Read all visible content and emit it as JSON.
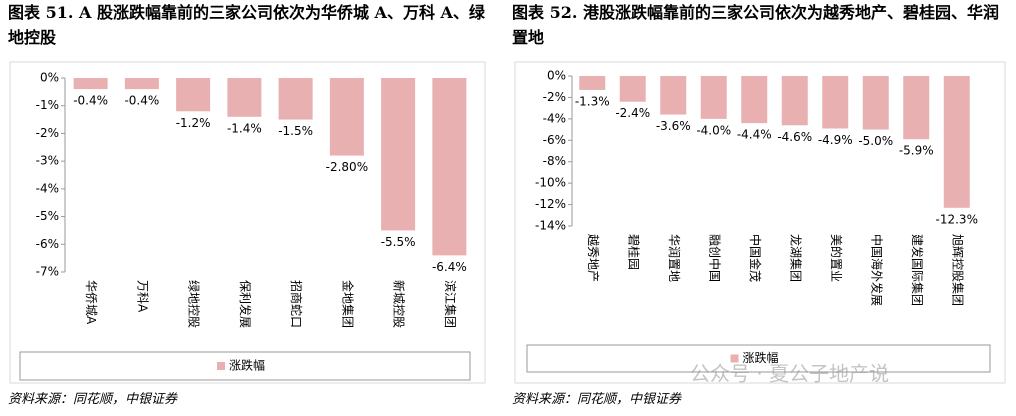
{
  "chart_data": [
    {
      "type": "bar",
      "title": "图表 51. A 股涨跌幅靠前的三家公司依次为华侨城 A、万科 A、绿地控股",
      "categories": [
        "华侨城A",
        "万科A",
        "绿地控股",
        "保利发展",
        "招商蛇口",
        "金地集团",
        "新城控股",
        "滨江集团"
      ],
      "series": [
        {
          "name": "涨跌幅",
          "color": "#e8b0b0",
          "values": [
            -0.4,
            -0.4,
            -1.2,
            -1.4,
            -1.5,
            -2.8,
            -5.5,
            -6.4
          ],
          "value_labels": [
            "-0.4%",
            "-0.4%",
            "-1.2%",
            "-1.4%",
            "-1.5%",
            "-2.80%",
            "-5.5%",
            "-6.4%"
          ]
        }
      ],
      "ylim": [
        -7,
        0
      ],
      "yticks": [
        {
          "value": 0,
          "label": "0%"
        },
        {
          "value": -1,
          "label": "-1%"
        },
        {
          "value": -2,
          "label": "-2%"
        },
        {
          "value": -3,
          "label": "-3%"
        },
        {
          "value": -4,
          "label": "-4%"
        },
        {
          "value": -5,
          "label": "-5%"
        },
        {
          "value": -6,
          "label": "-6%"
        },
        {
          "value": -7,
          "label": "-7%"
        }
      ],
      "grid": false,
      "legend": "bottom",
      "source": "资料来源：同花顺，中银证券"
    },
    {
      "type": "bar",
      "title": "图表 52. 港股涨跌幅靠前的三家公司依次为越秀地产、碧桂园、华润置地",
      "categories": [
        "越秀地产",
        "碧桂园",
        "华润置地",
        "融创中国",
        "中国金茂",
        "龙湖集团",
        "美的置业",
        "中国海外发展",
        "建发国际集团",
        "旭辉控股集团"
      ],
      "series": [
        {
          "name": "涨跌幅",
          "color": "#e8b0b0",
          "values": [
            -1.3,
            -2.4,
            -3.6,
            -4.0,
            -4.4,
            -4.6,
            -4.9,
            -5.0,
            -5.9,
            -12.3
          ],
          "value_labels": [
            "-1.3%",
            "-2.4%",
            "-3.6%",
            "-4.0%",
            "-4.4%",
            "-4.6%",
            "-4.9%",
            "-5.0%",
            "-5.9%",
            "-12.3%"
          ]
        }
      ],
      "ylim": [
        -14,
        0
      ],
      "yticks": [
        {
          "value": 0,
          "label": "0%"
        },
        {
          "value": -2,
          "label": "-2%"
        },
        {
          "value": -4,
          "label": "-4%"
        },
        {
          "value": -6,
          "label": "-6%"
        },
        {
          "value": -8,
          "label": "-8%"
        },
        {
          "value": -10,
          "label": "-10%"
        },
        {
          "value": -12,
          "label": "-12%"
        },
        {
          "value": -14,
          "label": "-14%"
        }
      ],
      "grid": false,
      "legend": "bottom",
      "source": "资料来源：同花顺，中银证券"
    }
  ],
  "watermark": "公众号 · 夏公子地产说"
}
